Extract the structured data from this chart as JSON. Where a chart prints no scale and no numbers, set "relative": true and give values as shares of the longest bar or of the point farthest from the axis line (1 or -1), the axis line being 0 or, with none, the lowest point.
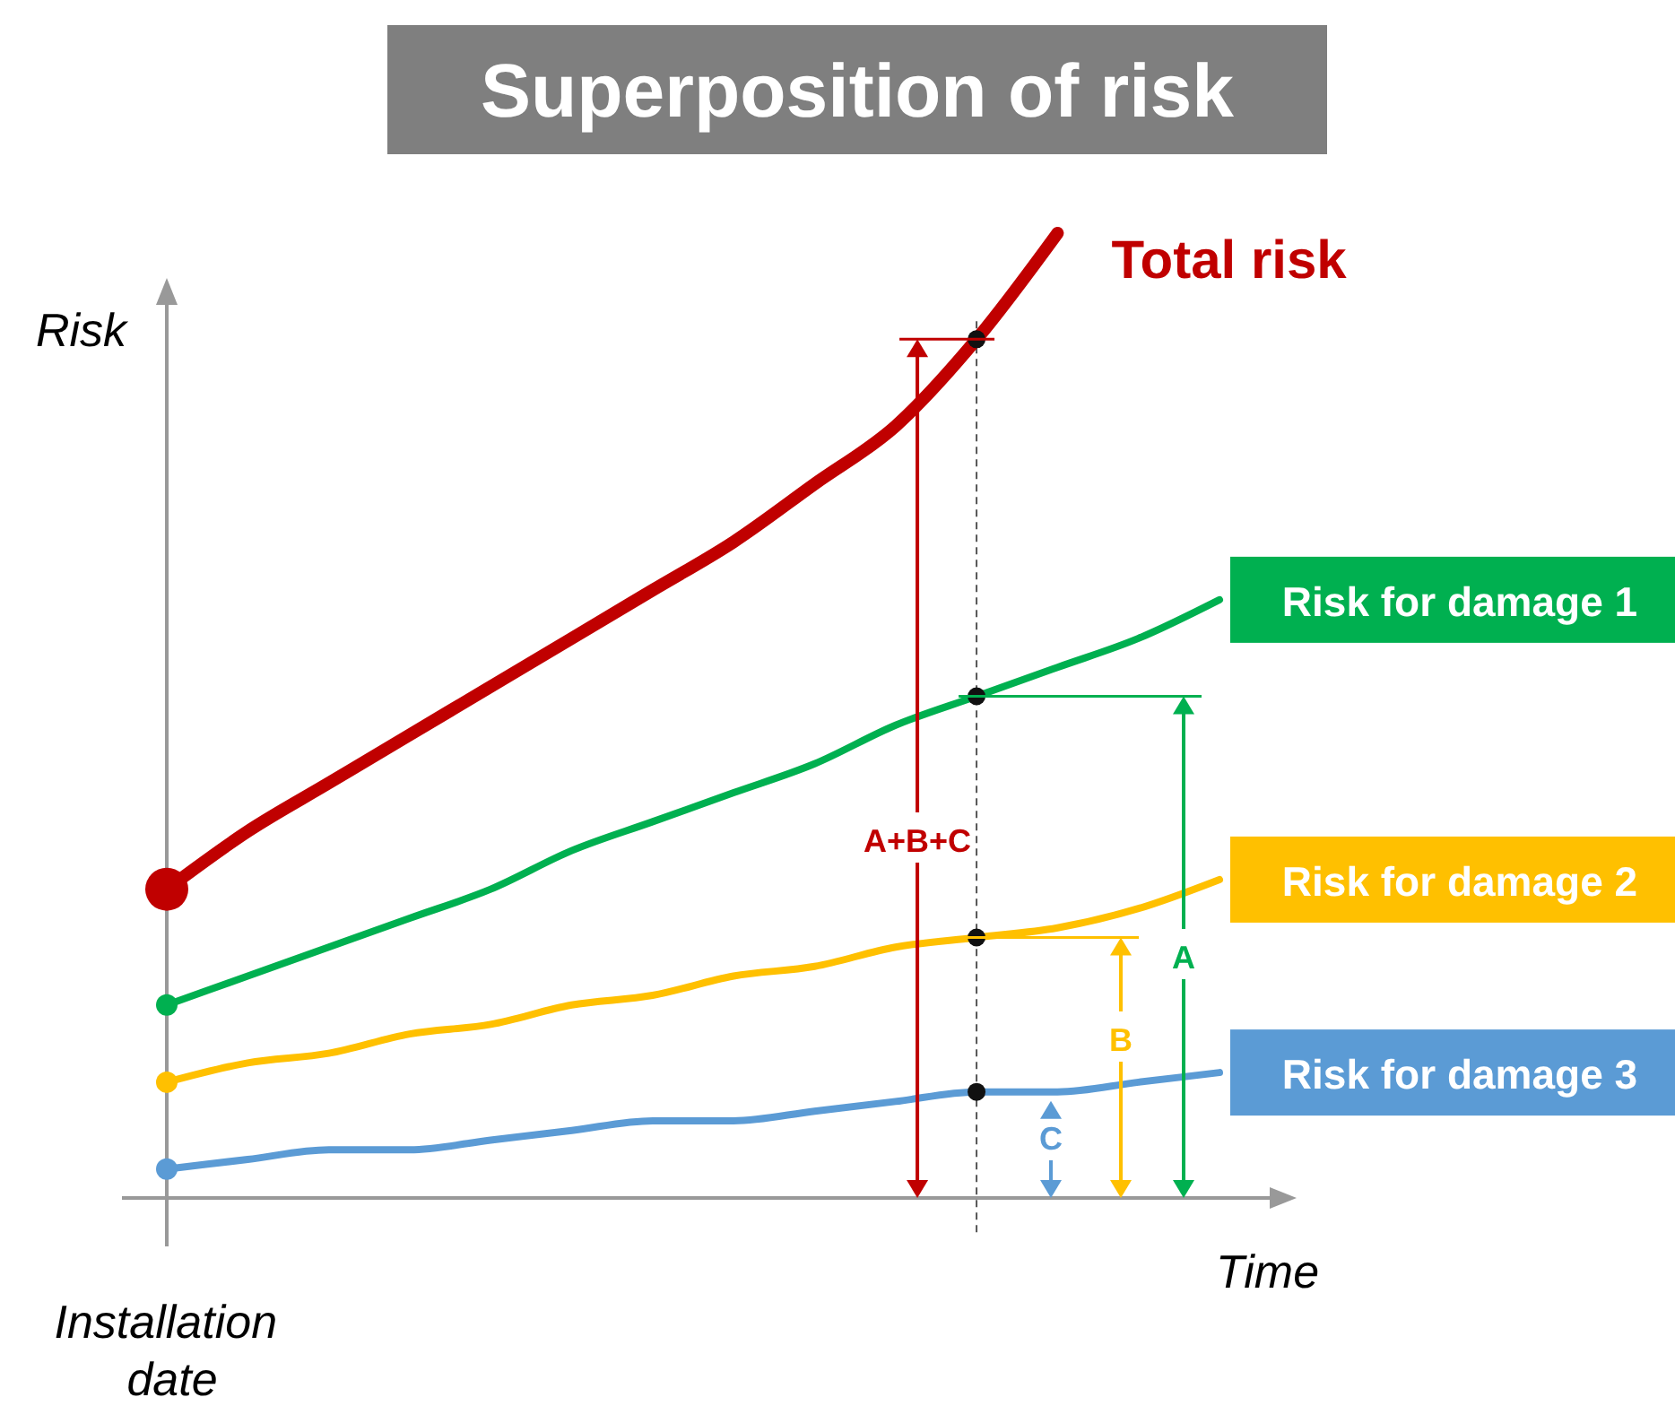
{
  "chart_data": {
    "type": "line",
    "title": "Superposition of risk",
    "ylabel": "Risk",
    "xlabel": "Time",
    "relative": true,
    "categories": [
      null,
      null,
      null,
      null,
      null,
      null,
      null,
      null,
      null,
      null,
      null,
      null,
      null,
      null
    ],
    "series": [
      {
        "name": "Total risk",
        "color": "#c00000",
        "values": [
          0.32,
          0.38,
          0.43,
          0.48,
          0.53,
          0.58,
          0.63,
          0.68,
          0.74,
          0.8,
          0.89,
          1.0,
          null,
          null
        ]
      },
      {
        "name": "Risk for damage 1",
        "color": "#00b050",
        "values": [
          0.2,
          0.23,
          0.26,
          0.29,
          0.32,
          0.36,
          0.39,
          0.42,
          0.45,
          0.49,
          0.52,
          0.55,
          0.58,
          0.62
        ]
      },
      {
        "name": "Risk for damage 2",
        "color": "#ffc000",
        "values": [
          0.12,
          0.14,
          0.15,
          0.17,
          0.18,
          0.2,
          0.21,
          0.23,
          0.24,
          0.26,
          0.27,
          0.28,
          0.3,
          0.33
        ]
      },
      {
        "name": "Risk for damage 3",
        "color": "#5b9bd5",
        "values": [
          0.03,
          0.04,
          0.05,
          0.05,
          0.06,
          0.07,
          0.08,
          0.08,
          0.09,
          0.1,
          0.11,
          0.11,
          0.12,
          0.13
        ]
      }
    ],
    "annotations": [
      "Installation date",
      "A+B+C",
      "A",
      "B",
      "C"
    ]
  }
}
